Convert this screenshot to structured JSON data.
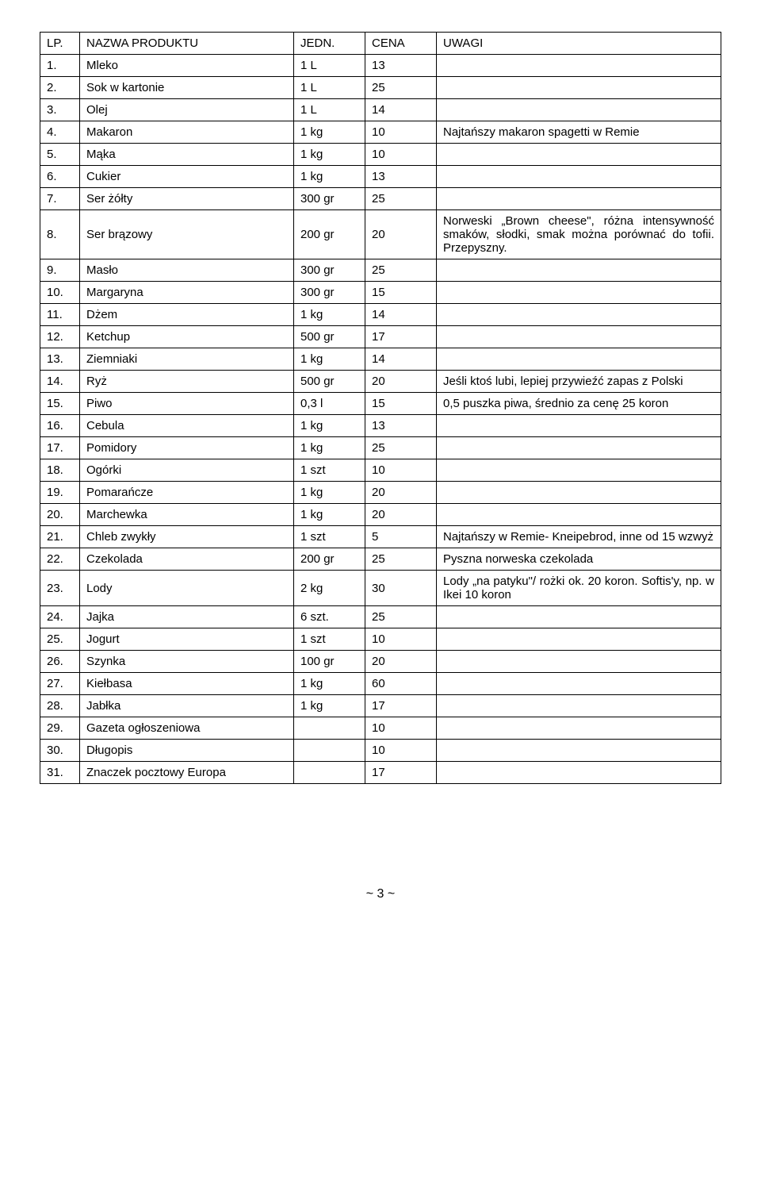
{
  "headers": {
    "lp": "LP.",
    "name": "NAZWA PRODUKTU",
    "unit": "JEDN.",
    "price": "CENA",
    "notes": "UWAGI"
  },
  "rows": [
    {
      "lp": "1.",
      "name": "Mleko",
      "unit": "1 L",
      "price": "13",
      "notes": ""
    },
    {
      "lp": "2.",
      "name": "Sok w kartonie",
      "unit": "1 L",
      "price": "25",
      "notes": ""
    },
    {
      "lp": "3.",
      "name": "Olej",
      "unit": "1 L",
      "price": "14",
      "notes": ""
    },
    {
      "lp": "4.",
      "name": "Makaron",
      "unit": "1 kg",
      "price": "10",
      "notes": "Najtańszy makaron spagetti w Remie"
    },
    {
      "lp": "5.",
      "name": "Mąka",
      "unit": "1 kg",
      "price": "10",
      "notes": ""
    },
    {
      "lp": "6.",
      "name": "Cukier",
      "unit": "1 kg",
      "price": "13",
      "notes": ""
    },
    {
      "lp": "7.",
      "name": "Ser żółty",
      "unit": "300 gr",
      "price": "25",
      "notes": ""
    },
    {
      "lp": "8.",
      "name": "Ser brązowy",
      "unit": "200 gr",
      "price": "20",
      "notes": "Norweski „Brown cheese\", różna intensywność smaków, słodki, smak można porównać do tofii. Przepyszny."
    },
    {
      "lp": "9.",
      "name": "Masło",
      "unit": "300 gr",
      "price": "25",
      "notes": ""
    },
    {
      "lp": "10.",
      "name": "Margaryna",
      "unit": "300 gr",
      "price": "15",
      "notes": ""
    },
    {
      "lp": "11.",
      "name": "Dżem",
      "unit": "1 kg",
      "price": "14",
      "notes": ""
    },
    {
      "lp": "12.",
      "name": "Ketchup",
      "unit": "500 gr",
      "price": "17",
      "notes": ""
    },
    {
      "lp": "13.",
      "name": "Ziemniaki",
      "unit": "1 kg",
      "price": "14",
      "notes": ""
    },
    {
      "lp": "14.",
      "name": "Ryż",
      "unit": "500 gr",
      "price": "20",
      "notes": "Jeśli ktoś lubi, lepiej przywieźć zapas z Polski"
    },
    {
      "lp": "15.",
      "name": "Piwo",
      "unit": "0,3 l",
      "price": "15",
      "notes": "0,5 puszka piwa, średnio za cenę 25 koron"
    },
    {
      "lp": "16.",
      "name": "Cebula",
      "unit": "1 kg",
      "price": "13",
      "notes": ""
    },
    {
      "lp": "17.",
      "name": "Pomidory",
      "unit": "1 kg",
      "price": "25",
      "notes": ""
    },
    {
      "lp": "18.",
      "name": "Ogórki",
      "unit": "1 szt",
      "price": "10",
      "notes": ""
    },
    {
      "lp": "19.",
      "name": "Pomarańcze",
      "unit": "1 kg",
      "price": "20",
      "notes": ""
    },
    {
      "lp": "20.",
      "name": "Marchewka",
      "unit": "1 kg",
      "price": "20",
      "notes": ""
    },
    {
      "lp": "21.",
      "name": "Chleb zwykły",
      "unit": "1 szt",
      "price": "5",
      "notes": "Najtańszy w Remie- Kneipebrod, inne od 15 wzwyż"
    },
    {
      "lp": "22.",
      "name": "Czekolada",
      "unit": "200 gr",
      "price": "25",
      "notes": "Pyszna norweska czekolada"
    },
    {
      "lp": "23.",
      "name": "Lody",
      "unit": "2 kg",
      "price": "30",
      "notes": "Lody „na patyku\"/ rożki ok. 20 koron. Softis'y, np. w Ikei 10 koron"
    },
    {
      "lp": "24.",
      "name": "Jajka",
      "unit": "6 szt.",
      "price": "25",
      "notes": ""
    },
    {
      "lp": "25.",
      "name": "Jogurt",
      "unit": "1 szt",
      "price": "10",
      "notes": ""
    },
    {
      "lp": "26.",
      "name": "Szynka",
      "unit": "100 gr",
      "price": "20",
      "notes": ""
    },
    {
      "lp": "27.",
      "name": "Kiełbasa",
      "unit": "1 kg",
      "price": "60",
      "notes": ""
    },
    {
      "lp": "28.",
      "name": "Jabłka",
      "unit": "1 kg",
      "price": "17",
      "notes": ""
    },
    {
      "lp": "29.",
      "name": "Gazeta ogłoszeniowa",
      "unit": "",
      "price": "10",
      "notes": ""
    },
    {
      "lp": "30.",
      "name": "Długopis",
      "unit": "",
      "price": "10",
      "notes": ""
    },
    {
      "lp": "31.",
      "name": "Znaczek pocztowy Europa",
      "unit": "",
      "price": "17",
      "notes": ""
    }
  ],
  "pageNumber": "~ 3 ~",
  "style": {
    "borderColor": "#000000",
    "fontSize": 15,
    "fontFamily": "Verdana",
    "backgroundColor": "#ffffff",
    "textColor": "#000000",
    "colWidths": {
      "lp": 50,
      "name": 270,
      "unit": 90,
      "price": 90
    },
    "justifyRows": [
      7,
      22
    ]
  }
}
